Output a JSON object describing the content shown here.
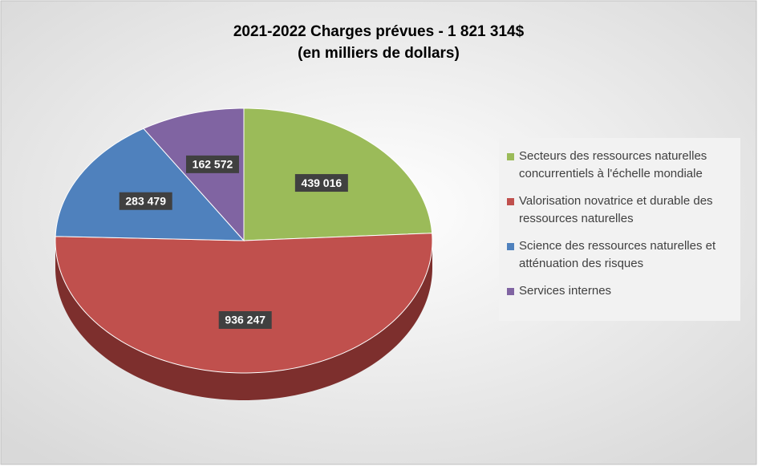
{
  "chart_data": {
    "type": "pie",
    "title": "2021-2022 Charges prévues - 1 821 314$",
    "subtitle": "(en milliers de dollars)",
    "categories": [
      "Secteurs des ressources naturelles concurrentiels à l'échelle mondiale",
      "Valorisation novatrice et durable des ressources naturelles",
      "Science des ressources naturelles et atténuation des risques",
      "Services internes"
    ],
    "values": [
      439016,
      936247,
      283479,
      162572
    ],
    "value_labels": [
      "439 016",
      "936 247",
      "283 479",
      "162 572"
    ],
    "colors": [
      "#9bbb59",
      "#c0504d",
      "#4f81bd",
      "#8064a2"
    ],
    "side_colors": [
      "#6f8a3c",
      "#7d2f2d",
      "#35598a",
      "#5a4478"
    ],
    "legend": "right"
  }
}
